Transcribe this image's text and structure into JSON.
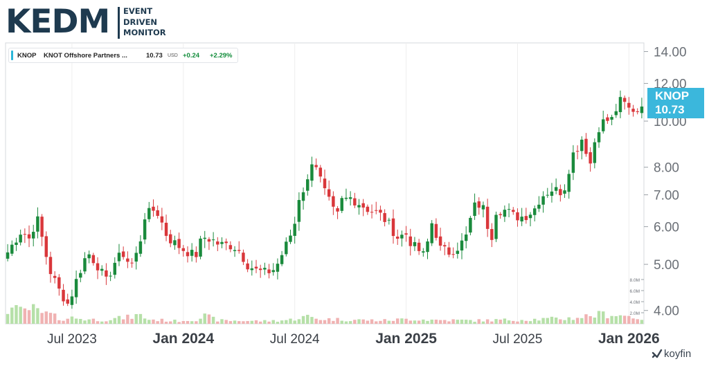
{
  "logo": {
    "main": "KEDM",
    "line1": "EVENT",
    "line2": "DRIVEN",
    "line3": "MONITOR"
  },
  "header": {
    "ticker": "KNOP",
    "name": "KNOT Offshore Partners ...",
    "price": "10.73",
    "currency": "USD",
    "change": "+0.24",
    "change_pct": "+2.29%"
  },
  "price_tag": {
    "ticker": "KNOP",
    "price": "10.73",
    "color": "#3bb7dc"
  },
  "brand": {
    "name": "koyfin",
    "icon": "koyfin-logo-icon"
  },
  "colors": {
    "up": "#1a8a3c",
    "down": "#d9373b",
    "vol_up": "#b6e0a8",
    "vol_down": "#f0b2b2",
    "grid": "#eeeeee"
  },
  "chart_data": {
    "type": "candlestick",
    "title": "",
    "xlabel": "",
    "ylabel": "",
    "y_scale": "log",
    "ylim": [
      3.75,
      14.6
    ],
    "y_ticks": [
      {
        "value": 4,
        "label": "4.00"
      },
      {
        "value": 5,
        "label": "5.00"
      },
      {
        "value": 6,
        "label": "6.00"
      },
      {
        "value": 7,
        "label": "7.00"
      },
      {
        "value": 8,
        "label": "8.00"
      },
      {
        "value": 10,
        "label": "10.00"
      },
      {
        "value": 12,
        "label": "12.00"
      },
      {
        "value": 14,
        "label": "14.00"
      }
    ],
    "x_ticks": [
      {
        "week": 15,
        "label": "Jul 2023",
        "bold": false
      },
      {
        "week": 41,
        "label": "Jan 2024",
        "bold": true
      },
      {
        "week": 67,
        "label": "Jul 2024",
        "bold": false
      },
      {
        "week": 93,
        "label": "Jan 2025",
        "bold": true
      },
      {
        "week": 119,
        "label": "Jul 2025",
        "bold": false
      },
      {
        "week": 145,
        "label": "Jan 2026",
        "bold": true
      }
    ],
    "volume_axis": {
      "max": 10,
      "ticks": [
        {
          "value": 2,
          "label": "2.0M"
        },
        {
          "value": 4,
          "label": "4.0M"
        },
        {
          "value": 6,
          "label": "6.0M"
        },
        {
          "value": 8,
          "label": "8.0M"
        }
      ]
    },
    "weeks": 149,
    "anchor_closes": [
      [
        0,
        5.3
      ],
      [
        3,
        5.9
      ],
      [
        5,
        5.6
      ],
      [
        6,
        6.4
      ],
      [
        8,
        5.3
      ],
      [
        9,
        4.85
      ],
      [
        11,
        4.4
      ],
      [
        13,
        4.1
      ],
      [
        14,
        4.45
      ],
      [
        17,
        5.3
      ],
      [
        19,
        5.0
      ],
      [
        21,
        4.6
      ],
      [
        23,
        5.1
      ],
      [
        25,
        5.3
      ],
      [
        26,
        4.9
      ],
      [
        28,
        5.4
      ],
      [
        29,
        6.3
      ],
      [
        31,
        6.5
      ],
      [
        32,
        6.4
      ],
      [
        34,
        5.7
      ],
      [
        36,
        5.5
      ],
      [
        37,
        5.4
      ],
      [
        40,
        5.2
      ],
      [
        41,
        5.55
      ],
      [
        42,
        5.7
      ],
      [
        44,
        5.6
      ],
      [
        45,
        5.5
      ],
      [
        47,
        5.5
      ],
      [
        49,
        5.4
      ],
      [
        51,
        5.0
      ],
      [
        53,
        4.85
      ],
      [
        55,
        4.8
      ],
      [
        57,
        4.9
      ],
      [
        59,
        5.4
      ],
      [
        61,
        6.0
      ],
      [
        62,
        6.9
      ],
      [
        64,
        7.5
      ],
      [
        65,
        8.5
      ],
      [
        66,
        7.9
      ],
      [
        67,
        7.3
      ],
      [
        68,
        6.9
      ],
      [
        69,
        6.6
      ],
      [
        70,
        6.2
      ],
      [
        71,
        6.8
      ],
      [
        73,
        6.9
      ],
      [
        75,
        6.7
      ],
      [
        77,
        6.5
      ],
      [
        79,
        6.4
      ],
      [
        81,
        6.1
      ],
      [
        83,
        5.7
      ],
      [
        85,
        5.8
      ],
      [
        86,
        5.5
      ],
      [
        88,
        5.3
      ],
      [
        89,
        5.15
      ],
      [
        90,
        6.2
      ],
      [
        91,
        5.9
      ],
      [
        92,
        5.4
      ],
      [
        94,
        5.3
      ],
      [
        96,
        5.45
      ],
      [
        97,
        5.6
      ],
      [
        98,
        5.8
      ],
      [
        99,
        6.6
      ],
      [
        101,
        6.7
      ],
      [
        102,
        6.1
      ],
      [
        103,
        5.7
      ],
      [
        104,
        6.5
      ],
      [
        106,
        6.5
      ],
      [
        108,
        6.3
      ],
      [
        110,
        6.3
      ],
      [
        112,
        6.5
      ],
      [
        113,
        6.8
      ],
      [
        114,
        7.0
      ],
      [
        116,
        7.2
      ],
      [
        118,
        7.1
      ],
      [
        119,
        7.4
      ],
      [
        120,
        8.5
      ],
      [
        121,
        8.6
      ],
      [
        122,
        9.3
      ],
      [
        123,
        8.8
      ],
      [
        124,
        8.1
      ],
      [
        125,
        9.1
      ],
      [
        126,
        9.8
      ],
      [
        127,
        10.0
      ],
      [
        129,
        10.1
      ],
      [
        130,
        11.0
      ],
      [
        131,
        11.0
      ],
      [
        132,
        10.6
      ],
      [
        133,
        10.6
      ],
      [
        134,
        10.5
      ],
      [
        135,
        10.73
      ]
    ],
    "volume_profile": [
      [
        0,
        2.9
      ],
      [
        3,
        2.2
      ],
      [
        5,
        2.8
      ],
      [
        7,
        1.9
      ],
      [
        9,
        1.7
      ],
      [
        11,
        0.9
      ],
      [
        14,
        1.1
      ],
      [
        17,
        0.8
      ],
      [
        20,
        0.7
      ],
      [
        26,
        1.2
      ],
      [
        28,
        1.6
      ],
      [
        30,
        0.8
      ],
      [
        36,
        0.5
      ],
      [
        40,
        0.8
      ],
      [
        42,
        1.4
      ],
      [
        45,
        0.6
      ],
      [
        55,
        0.5
      ],
      [
        60,
        0.7
      ],
      [
        62,
        1.1
      ],
      [
        64,
        1.3
      ],
      [
        66,
        0.9
      ],
      [
        70,
        0.8
      ],
      [
        80,
        0.6
      ],
      [
        86,
        0.9
      ],
      [
        90,
        0.7
      ],
      [
        100,
        0.6
      ],
      [
        112,
        0.8
      ],
      [
        120,
        1.0
      ],
      [
        125,
        1.6
      ],
      [
        128,
        1.8
      ],
      [
        132,
        1.4
      ],
      [
        135,
        1.0
      ]
    ]
  }
}
